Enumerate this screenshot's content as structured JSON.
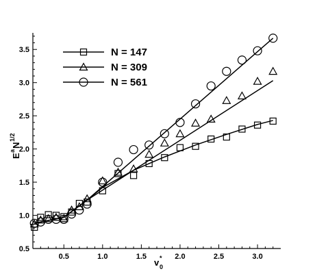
{
  "chart_data": {
    "type": "scatter",
    "title": "",
    "xlabel": "v",
    "xlabel_sup": "*",
    "xlabel_sub": "0",
    "ylabel": "E",
    "ylabel_sup": "a",
    "ylabel_main2": "N",
    "ylabel_sup2": "1/2",
    "xlim": [
      0.1,
      3.3
    ],
    "ylim": [
      0.5,
      3.75
    ],
    "xticks": [
      0.5,
      1.0,
      1.5,
      2.0,
      2.5,
      3.0
    ],
    "xtick_labels": [
      "0.5",
      "1.0",
      "1.5",
      "2.0",
      "2.5",
      "3.0"
    ],
    "yticks": [
      0.5,
      1.0,
      1.5,
      2.0,
      2.5,
      3.0,
      3.5
    ],
    "ytick_labels": [
      "0.5",
      "1.0",
      "1.5",
      "2.0",
      "2.5",
      "3.0",
      "3.5"
    ],
    "grid": false,
    "legend_position": "top-left",
    "series": [
      {
        "name": "N = 147",
        "marker": "square",
        "x": [
          0.12,
          0.2,
          0.3,
          0.4,
          0.5,
          0.6,
          0.7,
          0.8,
          1.0,
          1.2,
          1.4,
          1.6,
          1.8,
          2.0,
          2.2,
          2.4,
          2.6,
          2.8,
          3.0,
          3.2
        ],
        "y": [
          0.82,
          0.97,
          1.01,
          1.0,
          0.98,
          1.05,
          1.18,
          1.2,
          1.37,
          1.63,
          1.6,
          1.78,
          1.87,
          2.02,
          2.04,
          2.15,
          2.18,
          2.3,
          2.36,
          2.42
        ],
        "fit": {
          "x": [
            0.12,
            0.5,
            0.8,
            1.0,
            1.4,
            1.8,
            2.2,
            2.6,
            3.0,
            3.2
          ],
          "y": [
            0.88,
            0.97,
            1.23,
            1.42,
            1.68,
            1.88,
            2.06,
            2.22,
            2.37,
            2.43
          ]
        }
      },
      {
        "name": "N = 309",
        "marker": "triangle",
        "x": [
          0.12,
          0.2,
          0.3,
          0.4,
          0.5,
          0.6,
          0.7,
          0.8,
          1.0,
          1.2,
          1.4,
          1.6,
          1.8,
          2.0,
          2.2,
          2.4,
          2.6,
          2.8,
          3.0,
          3.2
        ],
        "y": [
          0.87,
          0.93,
          0.95,
          0.97,
          0.95,
          1.08,
          1.13,
          1.25,
          1.52,
          1.65,
          1.7,
          1.92,
          2.09,
          2.23,
          2.39,
          2.45,
          2.73,
          2.8,
          3.02,
          3.17
        ],
        "fit": {
          "x": [
            0.12,
            0.5,
            0.8,
            3.2
          ],
          "y": [
            0.88,
            0.97,
            1.23,
            3.03
          ]
        }
      },
      {
        "name": "N = 561",
        "marker": "circle",
        "x": [
          0.12,
          0.2,
          0.3,
          0.4,
          0.5,
          0.6,
          0.7,
          0.8,
          1.0,
          1.2,
          1.4,
          1.6,
          1.8,
          2.0,
          2.2,
          2.4,
          2.6,
          2.8,
          3.0,
          3.2
        ],
        "y": [
          0.88,
          0.9,
          0.94,
          0.94,
          0.94,
          1.02,
          1.08,
          1.17,
          1.5,
          1.8,
          1.99,
          2.06,
          2.23,
          2.4,
          2.68,
          2.95,
          3.17,
          3.34,
          3.48,
          3.67
        ],
        "fit": {
          "x": [
            0.12,
            0.5,
            0.8,
            3.2
          ],
          "y": [
            0.88,
            0.97,
            1.23,
            3.67
          ]
        }
      }
    ]
  }
}
